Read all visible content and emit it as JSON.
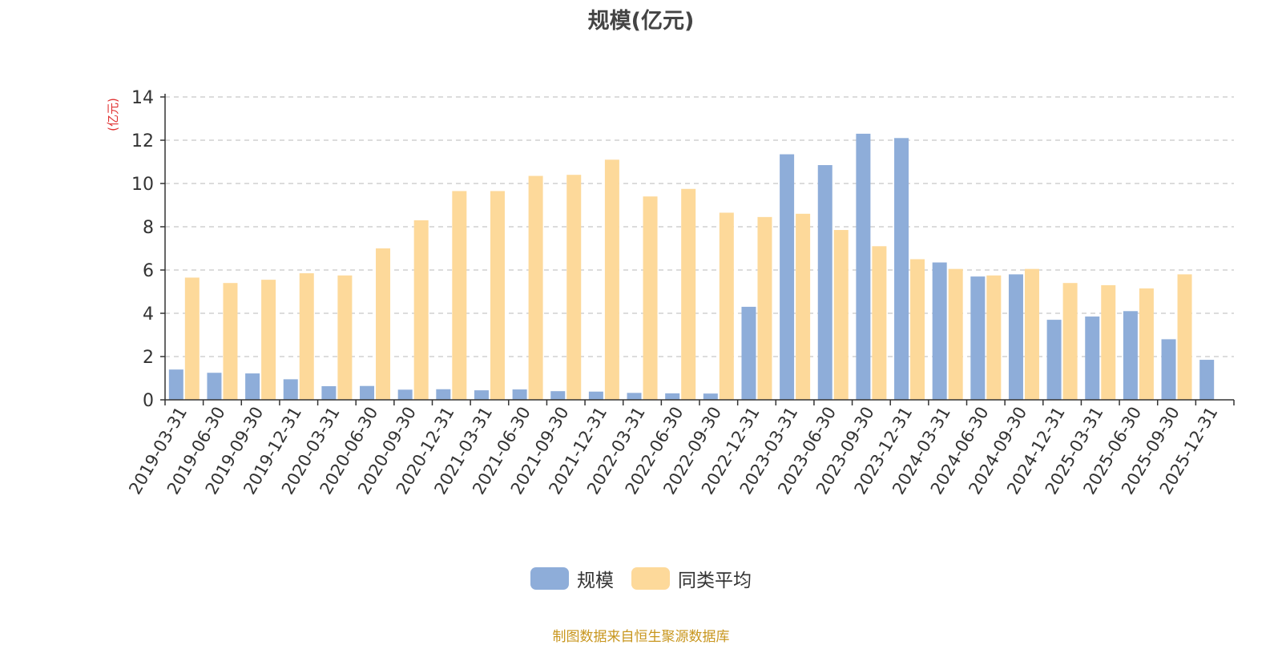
{
  "chart_data": {
    "type": "bar",
    "title": "规模(亿元)",
    "ylabel": "(亿元)",
    "xlabel": "",
    "ylim": [
      0,
      14
    ],
    "yticks": [
      0,
      2,
      4,
      6,
      8,
      10,
      12,
      14
    ],
    "grid": true,
    "legend_position": "bottom",
    "categories": [
      "2019-03-31",
      "2019-06-30",
      "2019-09-30",
      "2019-12-31",
      "2020-03-31",
      "2020-06-30",
      "2020-09-30",
      "2020-12-31",
      "2021-03-31",
      "2021-06-30",
      "2021-09-30",
      "2021-12-31",
      "2022-03-31",
      "2022-06-30",
      "2022-09-30",
      "2022-12-31",
      "2023-03-31",
      "2023-06-30",
      "2023-09-30",
      "2023-12-31",
      "2024-03-31",
      "2024-06-30",
      "2024-09-30",
      "2024-12-31",
      "2025-03-31",
      "2025-06-30",
      "2025-09-30",
      "2025-12-31"
    ],
    "series": [
      {
        "name": "规模",
        "color": "#8eadd9",
        "values": [
          1.4,
          1.25,
          1.22,
          0.95,
          0.63,
          0.64,
          0.47,
          0.49,
          0.44,
          0.48,
          0.4,
          0.38,
          0.32,
          0.3,
          0.29,
          4.3,
          11.35,
          10.85,
          12.3,
          12.1,
          6.35,
          5.7,
          5.8,
          3.7,
          3.85,
          4.1,
          2.8,
          1.85
        ]
      },
      {
        "name": "同类平均",
        "color": "#fdd99a",
        "values": [
          5.65,
          5.4,
          5.55,
          5.85,
          5.75,
          7.0,
          8.3,
          9.65,
          9.65,
          10.35,
          10.4,
          11.1,
          9.4,
          9.75,
          8.65,
          8.45,
          8.6,
          7.85,
          7.1,
          6.5,
          6.05,
          5.75,
          6.05,
          5.4,
          5.3,
          5.15,
          5.8,
          null
        ]
      }
    ]
  },
  "source": "制图数据来自恒生聚源数据库"
}
